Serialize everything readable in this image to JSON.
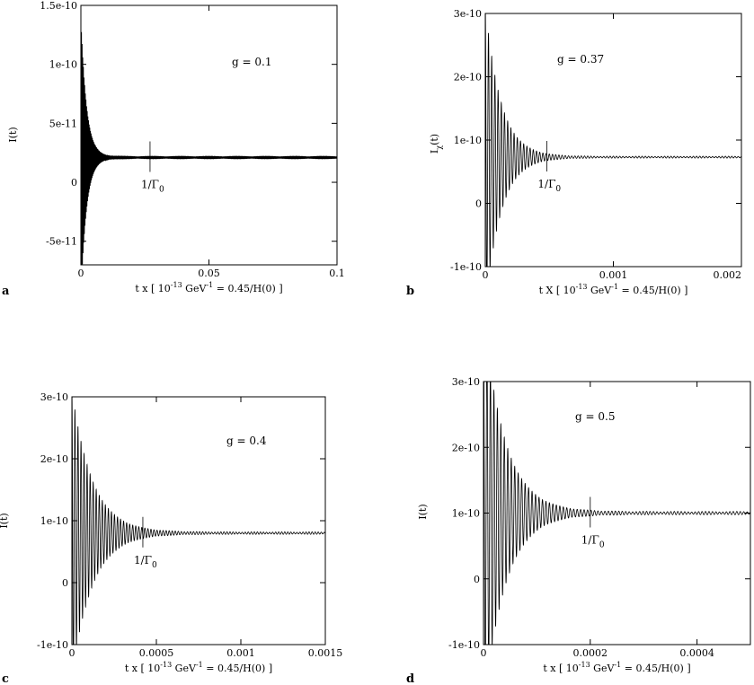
{
  "chart_data": [
    {
      "type": "line",
      "panel_label": "a",
      "annotation": "g = 0.1",
      "marker_label": "1/Γ",
      "marker_sub": "0",
      "xlabel": "t x [ 10",
      "xlabel_sup": "-13",
      "xlabel_mid": " GeV",
      "xlabel_sup2": "-1",
      "xlabel_end": " = 0.45/H(0) ]",
      "ylabel": "I(t)",
      "ylabel_sub": "",
      "xlim": [
        0,
        0.1
      ],
      "ylim": [
        -7e-11,
        1.5e-10
      ],
      "xticks": [
        {
          "v": 0,
          "label": "0"
        },
        {
          "v": 0.05,
          "label": "0.05"
        },
        {
          "v": 0.1,
          "label": "0.1"
        }
      ],
      "yticks": [
        {
          "v": -5e-11,
          "label": "-5e-11"
        },
        {
          "v": 0,
          "label": "0"
        },
        {
          "v": 5e-11,
          "label": "5e-11"
        },
        {
          "v": 1e-10,
          "label": "1e-10"
        },
        {
          "v": 1.5e-10,
          "label": "1.5e-10"
        }
      ],
      "marker_x": 0.027,
      "series": [
        {
          "equilibrium": 2.1e-11,
          "initial_amplitude": 1.2e-10,
          "decay_time": 0.0022,
          "oscillation_period": 0.00025,
          "residual_amplitude": 1e-12
        }
      ]
    },
    {
      "type": "line",
      "panel_label": "b",
      "annotation": "g = 0.37",
      "marker_label": "1/Γ",
      "marker_sub": "0",
      "xlabel": "t X [ 10",
      "xlabel_sup": "-13",
      "xlabel_mid": " GeV",
      "xlabel_sup2": "-1",
      "xlabel_end": " = 0.45/H(0) ]",
      "ylabel": "I",
      "ylabel_sub": "χ",
      "ylabel_end": "(t)",
      "xlim": [
        0,
        0.002
      ],
      "ylim": [
        -1e-10,
        3e-10
      ],
      "xticks": [
        {
          "v": 0,
          "label": "0"
        },
        {
          "v": 0.001,
          "label": "0.001"
        },
        {
          "v": 0.002,
          "label": "0.002"
        }
      ],
      "yticks": [
        {
          "v": -1e-10,
          "label": "-1e-10"
        },
        {
          "v": 0,
          "label": "0"
        },
        {
          "v": 1e-10,
          "label": "1e-10"
        },
        {
          "v": 2e-10,
          "label": "2e-10"
        },
        {
          "v": 3e-10,
          "label": "3e-10"
        }
      ],
      "marker_x": 0.00048,
      "series": [
        {
          "equilibrium": 7.3e-11,
          "initial_amplitude": 2.4e-10,
          "decay_time": 0.00012,
          "oscillation_period": 2.5e-05,
          "residual_amplitude": 1.5e-12
        }
      ]
    },
    {
      "type": "line",
      "panel_label": "c",
      "annotation": "g = 0.4",
      "marker_label": "1/Γ",
      "marker_sub": "0",
      "xlabel": "t x [ 10",
      "xlabel_sup": "-13",
      "xlabel_mid": " GeV",
      "xlabel_sup2": "-1",
      "xlabel_end": " = 0.45/H(0) ]",
      "ylabel": "I(t)",
      "ylabel_sub": "",
      "xlim": [
        0,
        0.0015
      ],
      "ylim": [
        -1e-10,
        3e-10
      ],
      "xticks": [
        {
          "v": 0,
          "label": "0"
        },
        {
          "v": 0.0005,
          "label": "0.0005"
        },
        {
          "v": 0.001,
          "label": "0.001"
        },
        {
          "v": 0.0015,
          "label": "0.0015"
        }
      ],
      "yticks": [
        {
          "v": -1e-10,
          "label": "-1e-10"
        },
        {
          "v": 0,
          "label": "0"
        },
        {
          "v": 1e-10,
          "label": "1e-10"
        },
        {
          "v": 2e-10,
          "label": "2e-10"
        },
        {
          "v": 3e-10,
          "label": "3e-10"
        }
      ],
      "marker_x": 0.00042,
      "series": [
        {
          "equilibrium": 8e-11,
          "initial_amplitude": 2.3e-10,
          "decay_time": 0.00012,
          "oscillation_period": 1.8e-05,
          "residual_amplitude": 2e-12
        }
      ]
    },
    {
      "type": "line",
      "panel_label": "d",
      "annotation": "g = 0.5",
      "marker_label": "1/Γ",
      "marker_sub": "0",
      "xlabel": "t x [ 10",
      "xlabel_sup": "-13",
      "xlabel_mid": " GeV",
      "xlabel_sup2": "-1",
      "xlabel_end": " = 0.45/H(0) ]",
      "ylabel": "I(t)",
      "ylabel_sub": "",
      "xlim": [
        0,
        0.0005
      ],
      "ylim": [
        -1e-10,
        3e-10
      ],
      "xticks": [
        {
          "v": 0,
          "label": "0"
        },
        {
          "v": 0.0002,
          "label": "0.0002"
        },
        {
          "v": 0.0004,
          "label": "0.0004"
        }
      ],
      "yticks": [
        {
          "v": -1e-10,
          "label": "-1e-10"
        },
        {
          "v": 0,
          "label": "0"
        },
        {
          "v": 1e-10,
          "label": "1e-10"
        },
        {
          "v": 2e-10,
          "label": "2e-10"
        },
        {
          "v": 3e-10,
          "label": "3e-10"
        }
      ],
      "marker_x": 0.0002,
      "series": [
        {
          "equilibrium": 1e-10,
          "initial_amplitude": 3e-10,
          "decay_time": 4e-05,
          "oscillation_period": 6.5e-06,
          "residual_amplitude": 2.5e-12
        }
      ]
    }
  ]
}
